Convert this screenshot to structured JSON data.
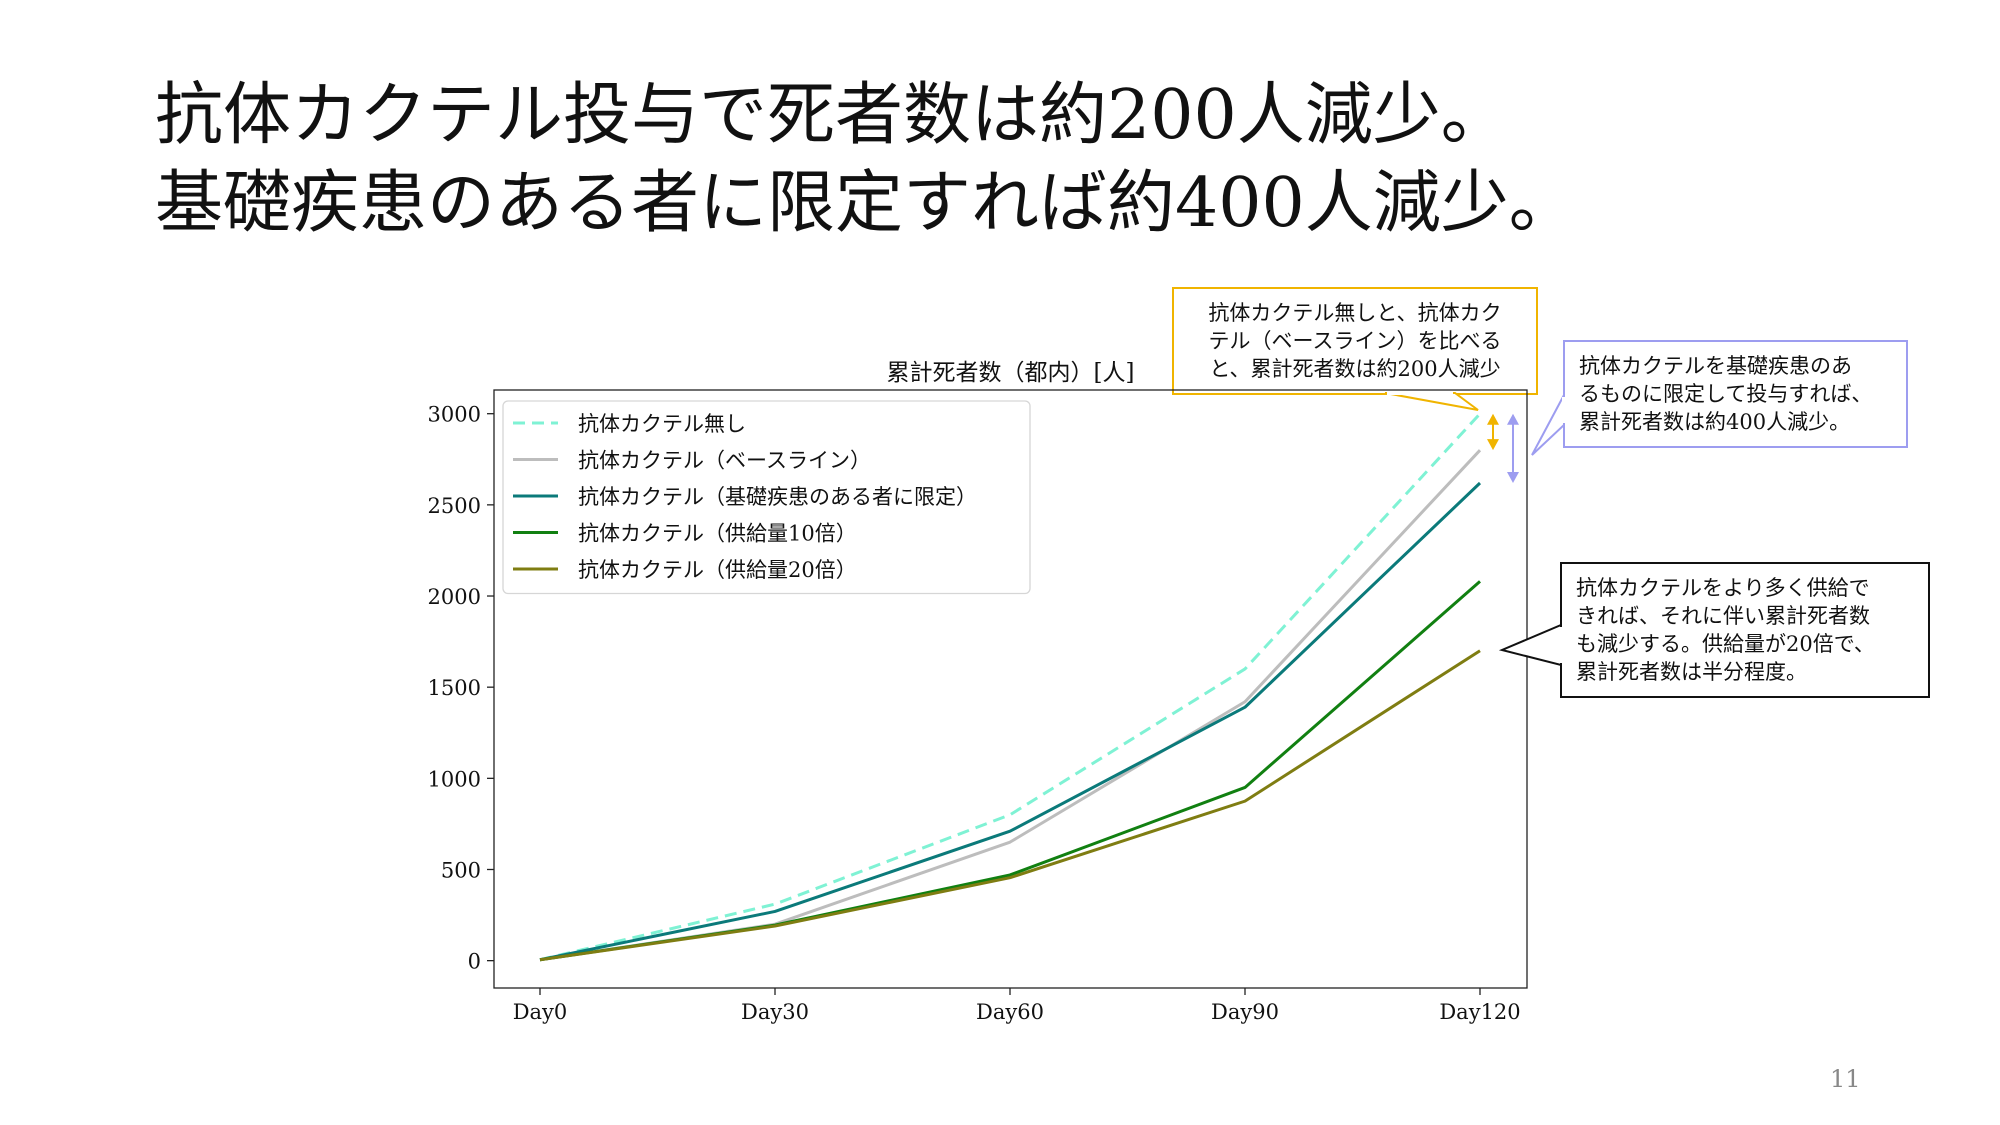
{
  "slide": {
    "title_lines": [
      "抗体カクテル投与で死者数は約200人減少。",
      "基礎疾患のある者に限定すれば約400人減少。"
    ],
    "page_number": "11"
  },
  "callouts": {
    "baseline": [
      "抗体カクテル無しと、抗体カク",
      "テル（ベースライン）を比べる",
      "と、累計死者数は約200人減少"
    ],
    "underlying": [
      "抗体カクテルを基礎疾患のあ",
      "るものに限定して投与すれば、",
      "累計死者数は約400人減少。"
    ],
    "supply": [
      "抗体カクテルをより多く供給で",
      "きれば、それに伴い累計死者数",
      "も減少する。供給量が20倍で、",
      "累計死者数は半分程度。"
    ]
  },
  "colors": {
    "baseline_arrow": "#f0b400",
    "underlying_arrow": "#9d9df0"
  },
  "chart_data": {
    "type": "line",
    "title": "累計死者数（都内）[人]",
    "categories": [
      "Day0",
      "Day30",
      "Day60",
      "Day90",
      "Day120"
    ],
    "ylim": [
      -150,
      3130
    ],
    "yticks": [
      0,
      500,
      1000,
      1500,
      2000,
      2500,
      3000
    ],
    "grid": false,
    "legend": "top-left",
    "series": [
      {
        "name": "抗体カクテル無し",
        "values": [
          5,
          310,
          800,
          1600,
          3000
        ],
        "color": "#7ff2d4",
        "dash": true
      },
      {
        "name": "抗体カクテル（ベースライン）",
        "values": [
          5,
          200,
          650,
          1420,
          2800
        ],
        "color": "#bdbdbd",
        "dash": false
      },
      {
        "name": "抗体カクテル（基礎疾患のある者に限定）",
        "values": [
          5,
          270,
          710,
          1390,
          2620
        ],
        "color": "#0b7a7a",
        "dash": false
      },
      {
        "name": "抗体カクテル（供給量10倍）",
        "values": [
          5,
          195,
          470,
          950,
          2080
        ],
        "color": "#118011",
        "dash": false
      },
      {
        "name": "抗体カクテル（供給量20倍）",
        "values": [
          5,
          190,
          455,
          875,
          1700
        ],
        "color": "#7f7d12",
        "dash": false
      }
    ]
  }
}
